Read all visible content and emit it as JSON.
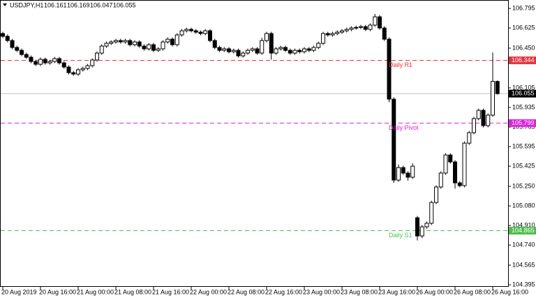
{
  "chart_data": {
    "type": "candlestick",
    "title": "USDJPY,H1",
    "categories": [
      "20 Aug 2019",
      null,
      null,
      null,
      null,
      null,
      null,
      null,
      "20 Aug 16:00",
      null,
      null,
      null,
      null,
      null,
      null,
      null,
      "21 Aug 00:00",
      null,
      null,
      null,
      null,
      null,
      null,
      null,
      "21 Aug 08:00",
      null,
      null,
      null,
      null,
      null,
      null,
      null,
      "21 Aug 16:00",
      null,
      null,
      null,
      null,
      null,
      null,
      null,
      "22 Aug 00:00",
      null,
      null,
      null,
      null,
      null,
      null,
      null,
      "22 Aug 08:00",
      null,
      null,
      null,
      null,
      null,
      null,
      null,
      "22 Aug 16:00",
      null,
      null,
      null,
      null,
      null,
      null,
      null,
      "23 Aug 00:00",
      null,
      null,
      null,
      null,
      null,
      null,
      null,
      "23 Aug 08:00",
      null,
      null,
      null,
      null,
      null,
      null,
      null,
      "23 Aug 16:00",
      null,
      null,
      null,
      null,
      null,
      null,
      null,
      "26 Aug 00:00",
      null,
      null,
      null,
      null,
      null,
      null,
      null,
      "26 Aug 08:00",
      null,
      null,
      null,
      null,
      null,
      null,
      null,
      "26 Aug 16:00",
      null
    ],
    "open": [
      106.577,
      106.553,
      106.516,
      106.456,
      106.431,
      106.395,
      106.371,
      106.334,
      106.31,
      106.353,
      106.322,
      106.334,
      106.359,
      106.322,
      106.286,
      106.237,
      106.225,
      106.262,
      106.274,
      106.298,
      106.347,
      106.407,
      106.468,
      106.492,
      106.504,
      106.516,
      106.504,
      106.516,
      106.48,
      106.504,
      106.468,
      106.444,
      106.48,
      106.431,
      106.444,
      106.504,
      106.528,
      106.48,
      106.565,
      106.601,
      106.613,
      106.601,
      106.589,
      106.577,
      106.601,
      106.516,
      106.456,
      106.431,
      106.444,
      106.419,
      106.431,
      106.383,
      106.407,
      106.431,
      106.444,
      106.407,
      106.516,
      106.577,
      106.407,
      106.444,
      106.456,
      106.431,
      106.407,
      106.431,
      106.419,
      106.444,
      106.431,
      106.456,
      106.492,
      106.577,
      106.565,
      106.577,
      106.589,
      106.601,
      106.613,
      106.625,
      106.63,
      106.637,
      106.613,
      106.65,
      106.722,
      106.625,
      106.528,
      106.007,
      105.304,
      105.413,
      105.365,
      105.329,
      104.977,
      104.819,
      104.898,
      104.929,
      105.11,
      105.244,
      105.365,
      105.522,
      105.462,
      105.28,
      105.256,
      105.625,
      105.716,
      105.838,
      105.91,
      105.777,
      105.868,
      106.161
    ],
    "high": [
      106.592,
      106.568,
      106.531,
      106.471,
      106.446,
      106.41,
      106.386,
      106.349,
      106.368,
      106.368,
      106.349,
      106.374,
      106.374,
      106.337,
      106.301,
      106.252,
      106.277,
      106.289,
      106.313,
      106.362,
      106.422,
      106.483,
      106.507,
      106.519,
      106.531,
      106.531,
      106.531,
      106.531,
      106.519,
      106.519,
      106.483,
      106.495,
      106.495,
      106.459,
      106.519,
      106.543,
      106.543,
      106.58,
      106.616,
      106.628,
      106.628,
      106.616,
      106.604,
      106.616,
      106.616,
      106.531,
      106.471,
      106.459,
      106.459,
      106.446,
      106.446,
      106.422,
      106.446,
      106.459,
      106.459,
      106.54,
      106.592,
      106.592,
      106.459,
      106.471,
      106.471,
      106.446,
      106.446,
      106.446,
      106.459,
      106.459,
      106.471,
      106.507,
      106.592,
      106.592,
      106.592,
      106.604,
      106.616,
      106.628,
      106.64,
      106.645,
      106.652,
      106.652,
      106.665,
      106.747,
      106.737,
      106.64,
      106.543,
      106.022,
      105.44,
      105.428,
      105.38,
      105.45,
      104.992,
      104.913,
      104.944,
      105.125,
      105.259,
      105.38,
      105.537,
      105.537,
      105.477,
      105.295,
      105.64,
      105.731,
      105.853,
      105.925,
      105.925,
      105.883,
      106.413,
      106.169
    ],
    "low": [
      106.538,
      106.501,
      106.441,
      106.416,
      106.38,
      106.356,
      106.319,
      106.295,
      106.295,
      106.307,
      106.307,
      106.319,
      106.307,
      106.271,
      106.222,
      106.21,
      106.21,
      106.247,
      106.259,
      106.283,
      106.332,
      106.392,
      106.453,
      106.477,
      106.489,
      106.489,
      106.489,
      106.465,
      106.465,
      106.453,
      106.429,
      106.429,
      106.416,
      106.416,
      106.429,
      106.489,
      106.465,
      106.465,
      106.55,
      106.586,
      106.586,
      106.574,
      106.562,
      106.562,
      106.501,
      106.441,
      106.416,
      106.416,
      106.404,
      106.404,
      106.368,
      106.368,
      106.392,
      106.416,
      106.392,
      106.392,
      106.501,
      106.35,
      106.392,
      106.429,
      106.416,
      106.392,
      106.392,
      106.404,
      106.404,
      106.416,
      106.416,
      106.441,
      106.477,
      106.55,
      106.55,
      106.562,
      106.574,
      106.586,
      106.598,
      106.61,
      106.615,
      106.598,
      106.598,
      106.635,
      106.61,
      106.513,
      105.98,
      105.28,
      105.289,
      105.35,
      105.3,
      105.314,
      104.78,
      104.8,
      104.883,
      104.914,
      105.095,
      105.229,
      105.35,
      105.447,
      105.23,
      105.241,
      105.241,
      105.61,
      105.701,
      105.823,
      105.762,
      105.762,
      105.853,
      106.047
    ],
    "close": [
      106.553,
      106.516,
      106.456,
      106.431,
      106.395,
      106.371,
      106.334,
      106.31,
      106.353,
      106.322,
      106.334,
      106.359,
      106.322,
      106.286,
      106.237,
      106.225,
      106.262,
      106.274,
      106.298,
      106.347,
      106.407,
      106.468,
      106.492,
      106.504,
      106.516,
      106.504,
      106.516,
      106.48,
      106.504,
      106.468,
      106.444,
      106.48,
      106.431,
      106.444,
      106.504,
      106.528,
      106.48,
      106.565,
      106.601,
      106.613,
      106.601,
      106.589,
      106.577,
      106.601,
      106.516,
      106.456,
      106.431,
      106.444,
      106.419,
      106.431,
      106.383,
      106.407,
      106.431,
      106.444,
      106.407,
      106.516,
      106.577,
      106.407,
      106.444,
      106.456,
      106.431,
      106.407,
      106.431,
      106.419,
      106.444,
      106.431,
      106.456,
      106.492,
      106.577,
      106.565,
      106.577,
      106.589,
      106.601,
      106.613,
      106.625,
      106.63,
      106.637,
      106.613,
      106.65,
      106.722,
      106.625,
      106.528,
      106.007,
      105.304,
      105.413,
      105.365,
      105.329,
      105.425,
      104.819,
      104.898,
      104.929,
      105.11,
      105.244,
      105.365,
      105.522,
      105.462,
      105.28,
      105.256,
      105.625,
      105.716,
      105.838,
      105.91,
      105.777,
      105.868,
      106.161,
      106.055
    ],
    "up_color": "#ffffff",
    "down_color": "#000000",
    "ylim": [
      104.377,
      106.856
    ],
    "yticks": [
      106.795,
      106.625,
      {
        "value": 106.45,
        "label": "106.450"
      },
      106.105,
      105.935,
      105.765,
      105.595,
      105.425,
      {
        "value": 105.25,
        "label": "105.250"
      },
      {
        "value": 105.08,
        "label": "105.080"
      },
      {
        "value": 104.91,
        "label": "104.910"
      },
      {
        "value": 104.74,
        "label": "104.740"
      },
      104.565,
      104.395
    ],
    "levels": [
      {
        "name": "Daily R1",
        "value": 106.344,
        "color": "#e8333d"
      },
      {
        "name": "Daily Pivot",
        "value": 105.799,
        "color": "#e020e0"
      },
      {
        "name": "Daily S1",
        "value": 104.865,
        "color": "#4cbf4c"
      }
    ],
    "price_line_color": "#c0c0c0"
  }
}
